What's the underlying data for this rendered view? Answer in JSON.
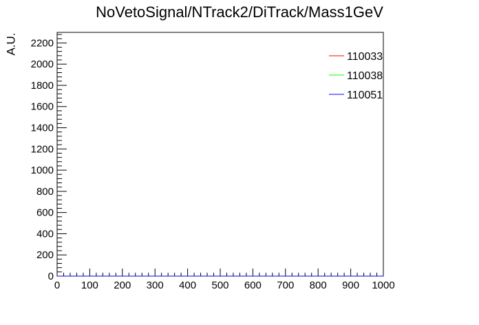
{
  "chart_data": {
    "type": "line",
    "title": "NoVetoSignal/NTrack2/DiTrack/Mass1GeV",
    "xlabel": "",
    "ylabel": "A.U.",
    "xlim": [
      0,
      1000
    ],
    "ylim": [
      0,
      2300
    ],
    "x_ticks": [
      "0",
      "100",
      "200",
      "300",
      "400",
      "500",
      "600",
      "700",
      "800",
      "900",
      "1000"
    ],
    "y_ticks": [
      "0",
      "200",
      "400",
      "600",
      "800",
      "1000",
      "1200",
      "1400",
      "1600",
      "1800",
      "2000",
      "2200"
    ],
    "grid": false,
    "legend_position": "top-right",
    "series": [
      {
        "name": "110033",
        "color": "#ff0000",
        "values": []
      },
      {
        "name": "110038",
        "color": "#00ff00",
        "values": []
      },
      {
        "name": "110051",
        "color": "#0000ff",
        "values": []
      }
    ]
  }
}
